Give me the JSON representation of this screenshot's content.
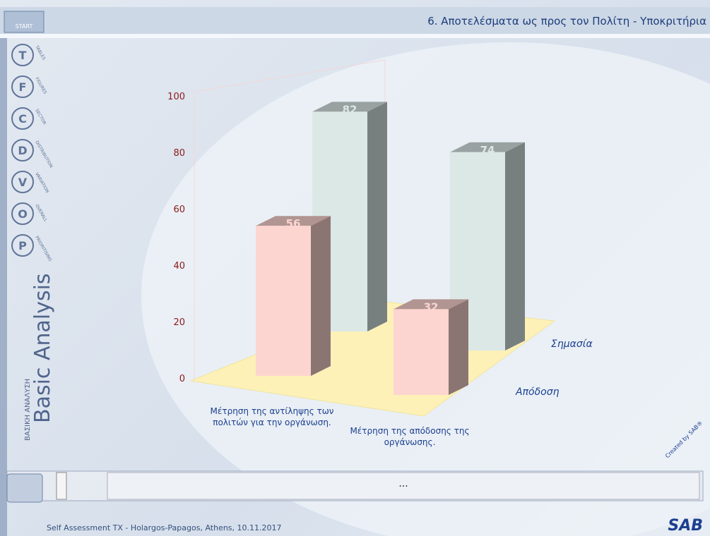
{
  "header": {
    "title": "6. Αποτελέσματα ως προς τον Πολίτη - Υποκριτήρια",
    "start": "START"
  },
  "sidebar": {
    "items": [
      "TABLES",
      "FIGURES",
      "SECTOR",
      "DISTRIBUTION",
      "VARIATION",
      "OVERALL",
      "PRIORITISING"
    ],
    "letters": [
      "T",
      "F",
      "C",
      "D",
      "V",
      "O",
      "P"
    ],
    "title": "Basic Analysis",
    "subtitle": "ΒΑΣΙΚΗ ΑΝΑΛΥΣΗ"
  },
  "chart_data": {
    "type": "bar3d",
    "categories": [
      "Μέτρηση της αντίληψης των πολιτών για την οργάνωση.",
      "Μέτρηση της απόδοσης της οργάνωσης."
    ],
    "series": [
      {
        "name": "Απόδοση",
        "color": "#fdd5d0",
        "values": [
          56,
          32
        ]
      },
      {
        "name": "Σημασία",
        "color": "#dbe8e6",
        "values": [
          82,
          74
        ]
      }
    ],
    "ylim": [
      0,
      100
    ],
    "yticks": [
      0,
      20,
      40,
      60,
      80,
      100
    ]
  },
  "panel": {
    "text": "..."
  },
  "footer": {
    "text": "Self Assessment TX - Holargos-Papagos, Athens, 10.11.2017",
    "credit": "Created by SAB®",
    "logo": "SAB"
  }
}
